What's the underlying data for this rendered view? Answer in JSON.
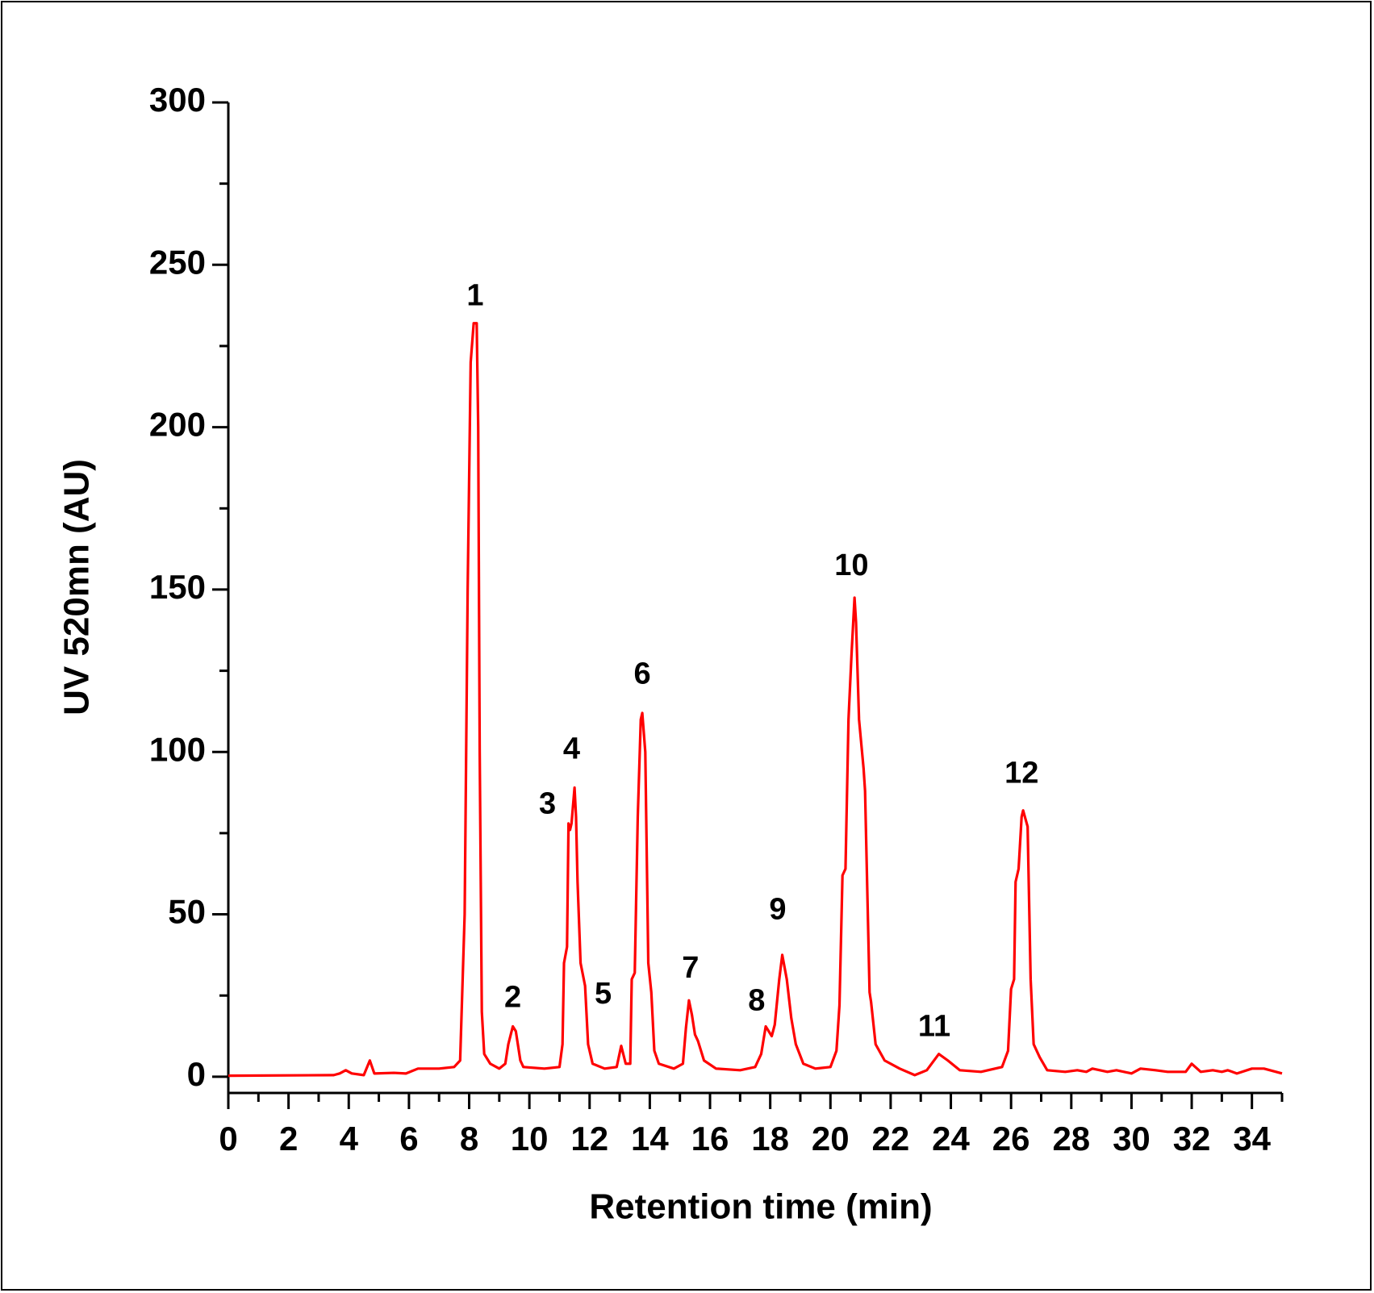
{
  "chart_data": {
    "type": "line",
    "xlabel": "Retention time (min)",
    "ylabel": "UV 520mn (AU)",
    "xlim": [
      0,
      35
    ],
    "ylim": [
      -5,
      300
    ],
    "xticks": [
      0,
      2,
      4,
      6,
      8,
      10,
      12,
      14,
      16,
      18,
      20,
      22,
      24,
      26,
      28,
      30,
      32,
      34
    ],
    "xminorticks": [
      1,
      3,
      5,
      7,
      9,
      11,
      13,
      15,
      17,
      19,
      21,
      23,
      25,
      27,
      29,
      31,
      33,
      35
    ],
    "yticks": [
      0,
      50,
      100,
      150,
      200,
      250,
      300
    ],
    "yminorticks": [
      25,
      75,
      125,
      175,
      225,
      275
    ],
    "series": [
      {
        "color": "#ff0000",
        "x": [
          0,
          3.5,
          3.7,
          3.9,
          4.1,
          4.5,
          4.7,
          4.85,
          5.5,
          5.9,
          6.3,
          7.0,
          7.5,
          7.7,
          7.85,
          7.95,
          8.05,
          8.15,
          8.25,
          8.3,
          8.35,
          8.42,
          8.5,
          8.7,
          9.0,
          9.2,
          9.3,
          9.45,
          9.55,
          9.7,
          9.8,
          10.5,
          11.0,
          11.1,
          11.15,
          11.25,
          11.3,
          11.35,
          11.4,
          11.5,
          11.55,
          11.6,
          11.7,
          11.85,
          11.95,
          12.1,
          12.5,
          12.9,
          13.05,
          13.2,
          13.35,
          13.4,
          13.5,
          13.6,
          13.7,
          13.75,
          13.85,
          13.95,
          14.05,
          14.15,
          14.3,
          14.8,
          15.1,
          15.2,
          15.3,
          15.4,
          15.5,
          15.6,
          15.8,
          16.2,
          17.0,
          17.5,
          17.7,
          17.85,
          17.95,
          18.05,
          18.15,
          18.3,
          18.4,
          18.55,
          18.7,
          18.85,
          19.1,
          19.5,
          20.0,
          20.2,
          20.3,
          20.4,
          20.5,
          20.6,
          20.7,
          20.8,
          20.85,
          20.95,
          21.1,
          21.15,
          21.3,
          21.35,
          21.5,
          21.8,
          22.3,
          22.8,
          23.2,
          23.6,
          23.9,
          24.3,
          25.0,
          25.7,
          25.9,
          26.0,
          26.1,
          26.15,
          26.25,
          26.35,
          26.4,
          26.55,
          26.65,
          26.75,
          26.95,
          27.2,
          27.8,
          28.2,
          28.5,
          28.7,
          29.2,
          29.5,
          30.0,
          30.3,
          30.8,
          31.2,
          31.8,
          32.0,
          32.3,
          32.7,
          33.0,
          33.2,
          33.5,
          34.0,
          34.4,
          35.0
        ],
        "values": [
          0.3,
          0.5,
          1,
          2,
          1,
          0.5,
          5,
          1,
          1.2,
          1,
          2.5,
          2.5,
          3,
          5,
          50,
          150,
          220,
          232,
          232,
          200,
          100,
          20,
          7,
          4,
          2.5,
          4,
          10,
          15.5,
          14,
          5,
          3,
          2.5,
          3,
          10,
          35,
          40,
          78,
          76,
          78,
          89,
          80,
          60,
          35,
          28,
          10,
          4,
          2.5,
          3,
          9.5,
          4,
          4,
          30,
          32,
          80,
          110,
          112,
          100,
          35,
          26,
          8,
          4,
          2.5,
          4,
          15,
          23.5,
          19,
          13,
          11,
          5,
          2.5,
          2,
          3,
          7,
          15.5,
          14,
          12.5,
          16,
          30,
          37.5,
          30,
          18,
          10,
          4,
          2.5,
          3,
          8,
          22,
          62,
          64,
          110,
          130,
          147.5,
          140,
          110,
          95,
          88,
          26,
          23,
          10,
          5,
          2.5,
          0.5,
          2,
          7,
          5,
          2,
          1.5,
          3,
          8,
          27,
          30,
          60,
          64,
          80,
          82,
          77,
          30,
          10,
          6,
          2,
          1.5,
          2,
          1.5,
          2.5,
          1.5,
          2,
          1,
          2.5,
          2,
          1.5,
          1.5,
          4,
          1.5,
          2,
          1.5,
          2,
          1,
          2.5,
          2.5,
          1
        ]
      }
    ],
    "annotations": [
      {
        "text": "1",
        "x": 8.2,
        "y": 240
      },
      {
        "text": "2",
        "x": 9.45,
        "y": 24
      },
      {
        "text": "3",
        "x": 10.6,
        "y": 83.5
      },
      {
        "text": "4",
        "x": 11.4,
        "y": 100.5
      },
      {
        "text": "5",
        "x": 12.45,
        "y": 25
      },
      {
        "text": "6",
        "x": 13.75,
        "y": 123.5
      },
      {
        "text": "7",
        "x": 15.35,
        "y": 33
      },
      {
        "text": "8",
        "x": 17.55,
        "y": 23
      },
      {
        "text": "9",
        "x": 18.25,
        "y": 51
      },
      {
        "text": "10",
        "x": 20.7,
        "y": 157
      },
      {
        "text": "11",
        "x": 23.45,
        "y": 15
      },
      {
        "text": "12",
        "x": 26.35,
        "y": 93
      }
    ]
  }
}
